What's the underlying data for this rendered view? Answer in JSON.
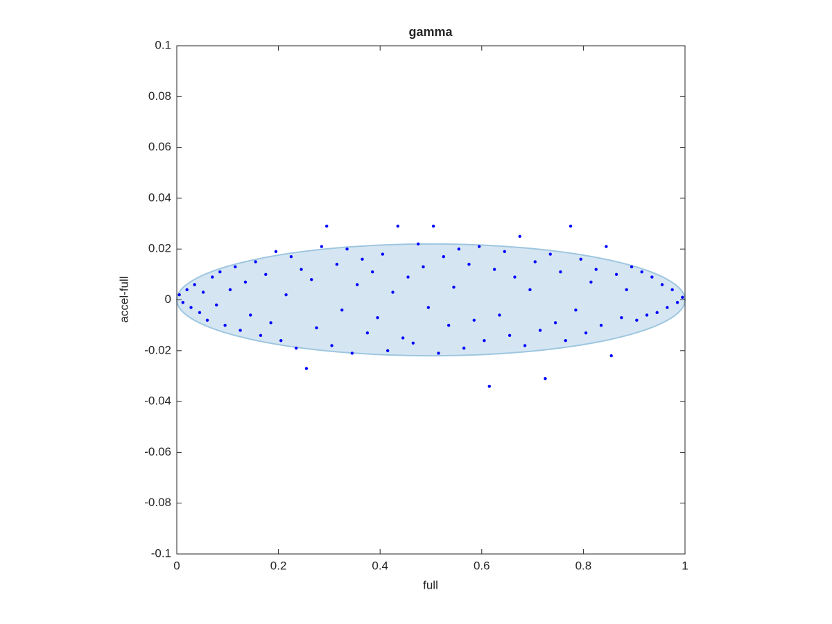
{
  "chart_data": {
    "type": "scatter",
    "title": "gamma",
    "x_label": "full",
    "y_label": "accel-full",
    "xlim": [
      0,
      1
    ],
    "ylim": [
      -0.1,
      0.1
    ],
    "xticks": [
      0,
      0.2,
      0.4,
      0.6,
      0.8,
      1
    ],
    "yticks": [
      -0.1,
      -0.08,
      -0.06,
      -0.04,
      -0.02,
      0,
      0.02,
      0.04,
      0.06,
      0.08,
      0.1
    ],
    "region": {
      "x": [
        0,
        1
      ],
      "y": [
        -0.022,
        0.022
      ],
      "color": "#d5e6f2",
      "edge_color": "#9ec6e0"
    },
    "series": [
      {
        "color": "#0000ff",
        "x": [
          0.005,
          0.012,
          0.02,
          0.028,
          0.035,
          0.045,
          0.052,
          0.06,
          0.07,
          0.078,
          0.085,
          0.095,
          0.105,
          0.115,
          0.125,
          0.135,
          0.145,
          0.155,
          0.165,
          0.175,
          0.185,
          0.195,
          0.205,
          0.215,
          0.225,
          0.235,
          0.245,
          0.255,
          0.265,
          0.275,
          0.285,
          0.295,
          0.305,
          0.315,
          0.325,
          0.335,
          0.345,
          0.355,
          0.365,
          0.375,
          0.385,
          0.395,
          0.405,
          0.415,
          0.425,
          0.435,
          0.445,
          0.455,
          0.465,
          0.475,
          0.485,
          0.495,
          0.505,
          0.515,
          0.525,
          0.535,
          0.545,
          0.555,
          0.565,
          0.575,
          0.585,
          0.595,
          0.605,
          0.615,
          0.625,
          0.635,
          0.645,
          0.655,
          0.665,
          0.675,
          0.685,
          0.695,
          0.705,
          0.715,
          0.725,
          0.735,
          0.745,
          0.755,
          0.765,
          0.775,
          0.785,
          0.795,
          0.805,
          0.815,
          0.825,
          0.835,
          0.845,
          0.855,
          0.865,
          0.875,
          0.885,
          0.895,
          0.905,
          0.915,
          0.925,
          0.935,
          0.945,
          0.955,
          0.965,
          0.975,
          0.985,
          0.995
        ],
        "values": [
          0.002,
          -0.001,
          0.004,
          -0.003,
          0.006,
          -0.005,
          0.003,
          -0.008,
          0.009,
          -0.002,
          0.011,
          -0.01,
          0.004,
          0.013,
          -0.012,
          0.007,
          -0.006,
          0.015,
          -0.014,
          0.01,
          -0.009,
          0.019,
          -0.016,
          0.002,
          0.017,
          -0.019,
          0.012,
          -0.027,
          0.008,
          -0.011,
          0.021,
          0.029,
          -0.018,
          0.014,
          -0.004,
          0.02,
          -0.021,
          0.006,
          0.016,
          -0.013,
          0.011,
          -0.007,
          0.018,
          -0.02,
          0.003,
          0.029,
          -0.015,
          0.009,
          -0.017,
          0.022,
          0.013,
          -0.003,
          0.029,
          -0.021,
          0.017,
          -0.01,
          0.005,
          0.02,
          -0.019,
          0.014,
          -0.008,
          0.021,
          -0.016,
          -0.034,
          0.012,
          -0.006,
          0.019,
          -0.014,
          0.009,
          0.025,
          -0.018,
          0.004,
          0.015,
          -0.012,
          -0.031,
          0.018,
          -0.009,
          0.011,
          -0.016,
          0.029,
          -0.004,
          0.016,
          -0.013,
          0.007,
          0.012,
          -0.01,
          0.021,
          -0.022,
          0.01,
          -0.007,
          0.004,
          0.013,
          -0.008,
          0.011,
          -0.006,
          0.009,
          -0.005,
          0.006,
          -0.003,
          0.004,
          -0.001,
          0.001
        ]
      }
    ]
  }
}
